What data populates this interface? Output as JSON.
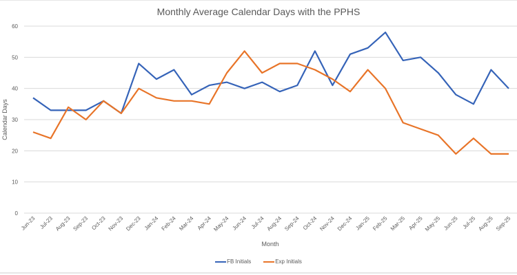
{
  "chart_data": {
    "type": "line",
    "title": "Monthly Average Calendar Days with the PPHS",
    "xlabel": "Month",
    "ylabel": "Calendar Days",
    "ylim": [
      0,
      60
    ],
    "yticks": [
      0,
      10,
      20,
      30,
      40,
      50,
      60
    ],
    "grid": true,
    "legend_position": "bottom",
    "categories": [
      "Jun-23",
      "Jul-23",
      "Aug-23",
      "Sep-23",
      "Oct-23",
      "Nov-23",
      "Dec-23",
      "Jan-24",
      "Feb-24",
      "Mar-24",
      "Apr-24",
      "May-24",
      "Jun-24",
      "Jul-24",
      "Aug-24",
      "Sep-24",
      "Oct-24",
      "Nov-24",
      "Dec-24",
      "Jan-25",
      "Feb-25",
      "Mar-25",
      "Apr-25",
      "May-25",
      "Jun-25",
      "Jul-25",
      "Aug-25",
      "Sep-25"
    ],
    "series": [
      {
        "name": "FB Initials",
        "color": "#3563B8",
        "values": [
          37,
          33,
          33,
          33,
          36,
          32,
          48,
          43,
          46,
          38,
          41,
          42,
          40,
          42,
          39,
          41,
          52,
          41,
          51,
          53,
          58,
          49,
          50,
          45,
          38,
          35,
          46,
          40
        ]
      },
      {
        "name": "Exp Initials",
        "color": "#E87428",
        "values": [
          26,
          24,
          34,
          30,
          36,
          32,
          40,
          37,
          36,
          36,
          35,
          45,
          52,
          45,
          48,
          48,
          46,
          43,
          39,
          46,
          40,
          29,
          27,
          25,
          19,
          24,
          19,
          19
        ]
      }
    ]
  }
}
